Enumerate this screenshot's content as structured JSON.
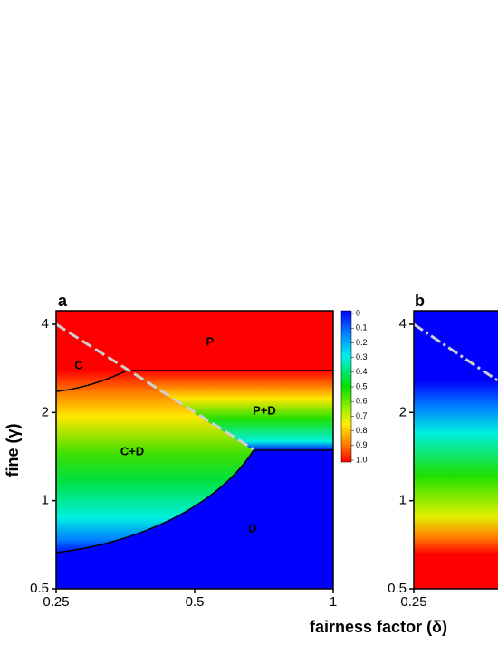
{
  "chart_data": [
    {
      "type": "heatmap",
      "panel_label": "a",
      "ylabel": "fine (γ)",
      "xlabel": "fairness factor (δ)",
      "xscale": "log",
      "yscale": "log",
      "xlim": [
        0.25,
        1
      ],
      "ylim": [
        0.5,
        4.45
      ],
      "xticks": [
        0.25,
        0.5,
        1
      ],
      "yticks": [
        0.5,
        1,
        2,
        4
      ],
      "regions": [
        "P",
        "C",
        "P+D",
        "C+D",
        "D"
      ],
      "colorbar": {
        "clim": [
          0,
          1
        ],
        "ticks": [
          0,
          0.1,
          0.2,
          0.3,
          0.4,
          0.5,
          0.6,
          0.7,
          0.8,
          0.9,
          {
            "value": 1,
            "label": "1.0"
          }
        ]
      }
    },
    {
      "type": "heatmap",
      "panel_label": "b",
      "xscale": "log",
      "yscale": "log",
      "xlim": [
        0.25,
        1
      ],
      "ylim": [
        0.5,
        4.45
      ],
      "xticks": [
        0.25
      ],
      "yticks": [
        0.5,
        1,
        2,
        4
      ]
    }
  ]
}
